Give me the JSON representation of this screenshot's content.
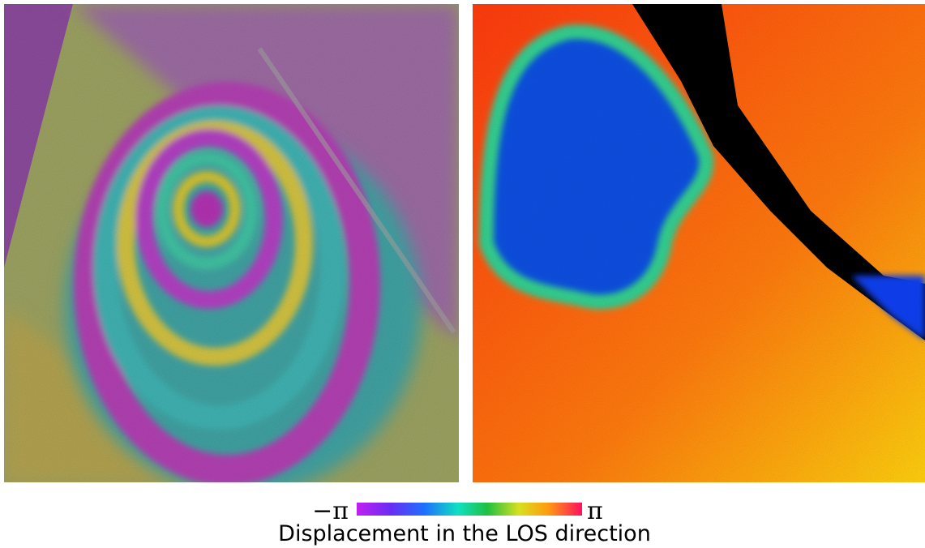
{
  "colorbar": {
    "min_label": "−π",
    "max_label": "π",
    "caption": "Displacement in the LOS direction"
  }
}
